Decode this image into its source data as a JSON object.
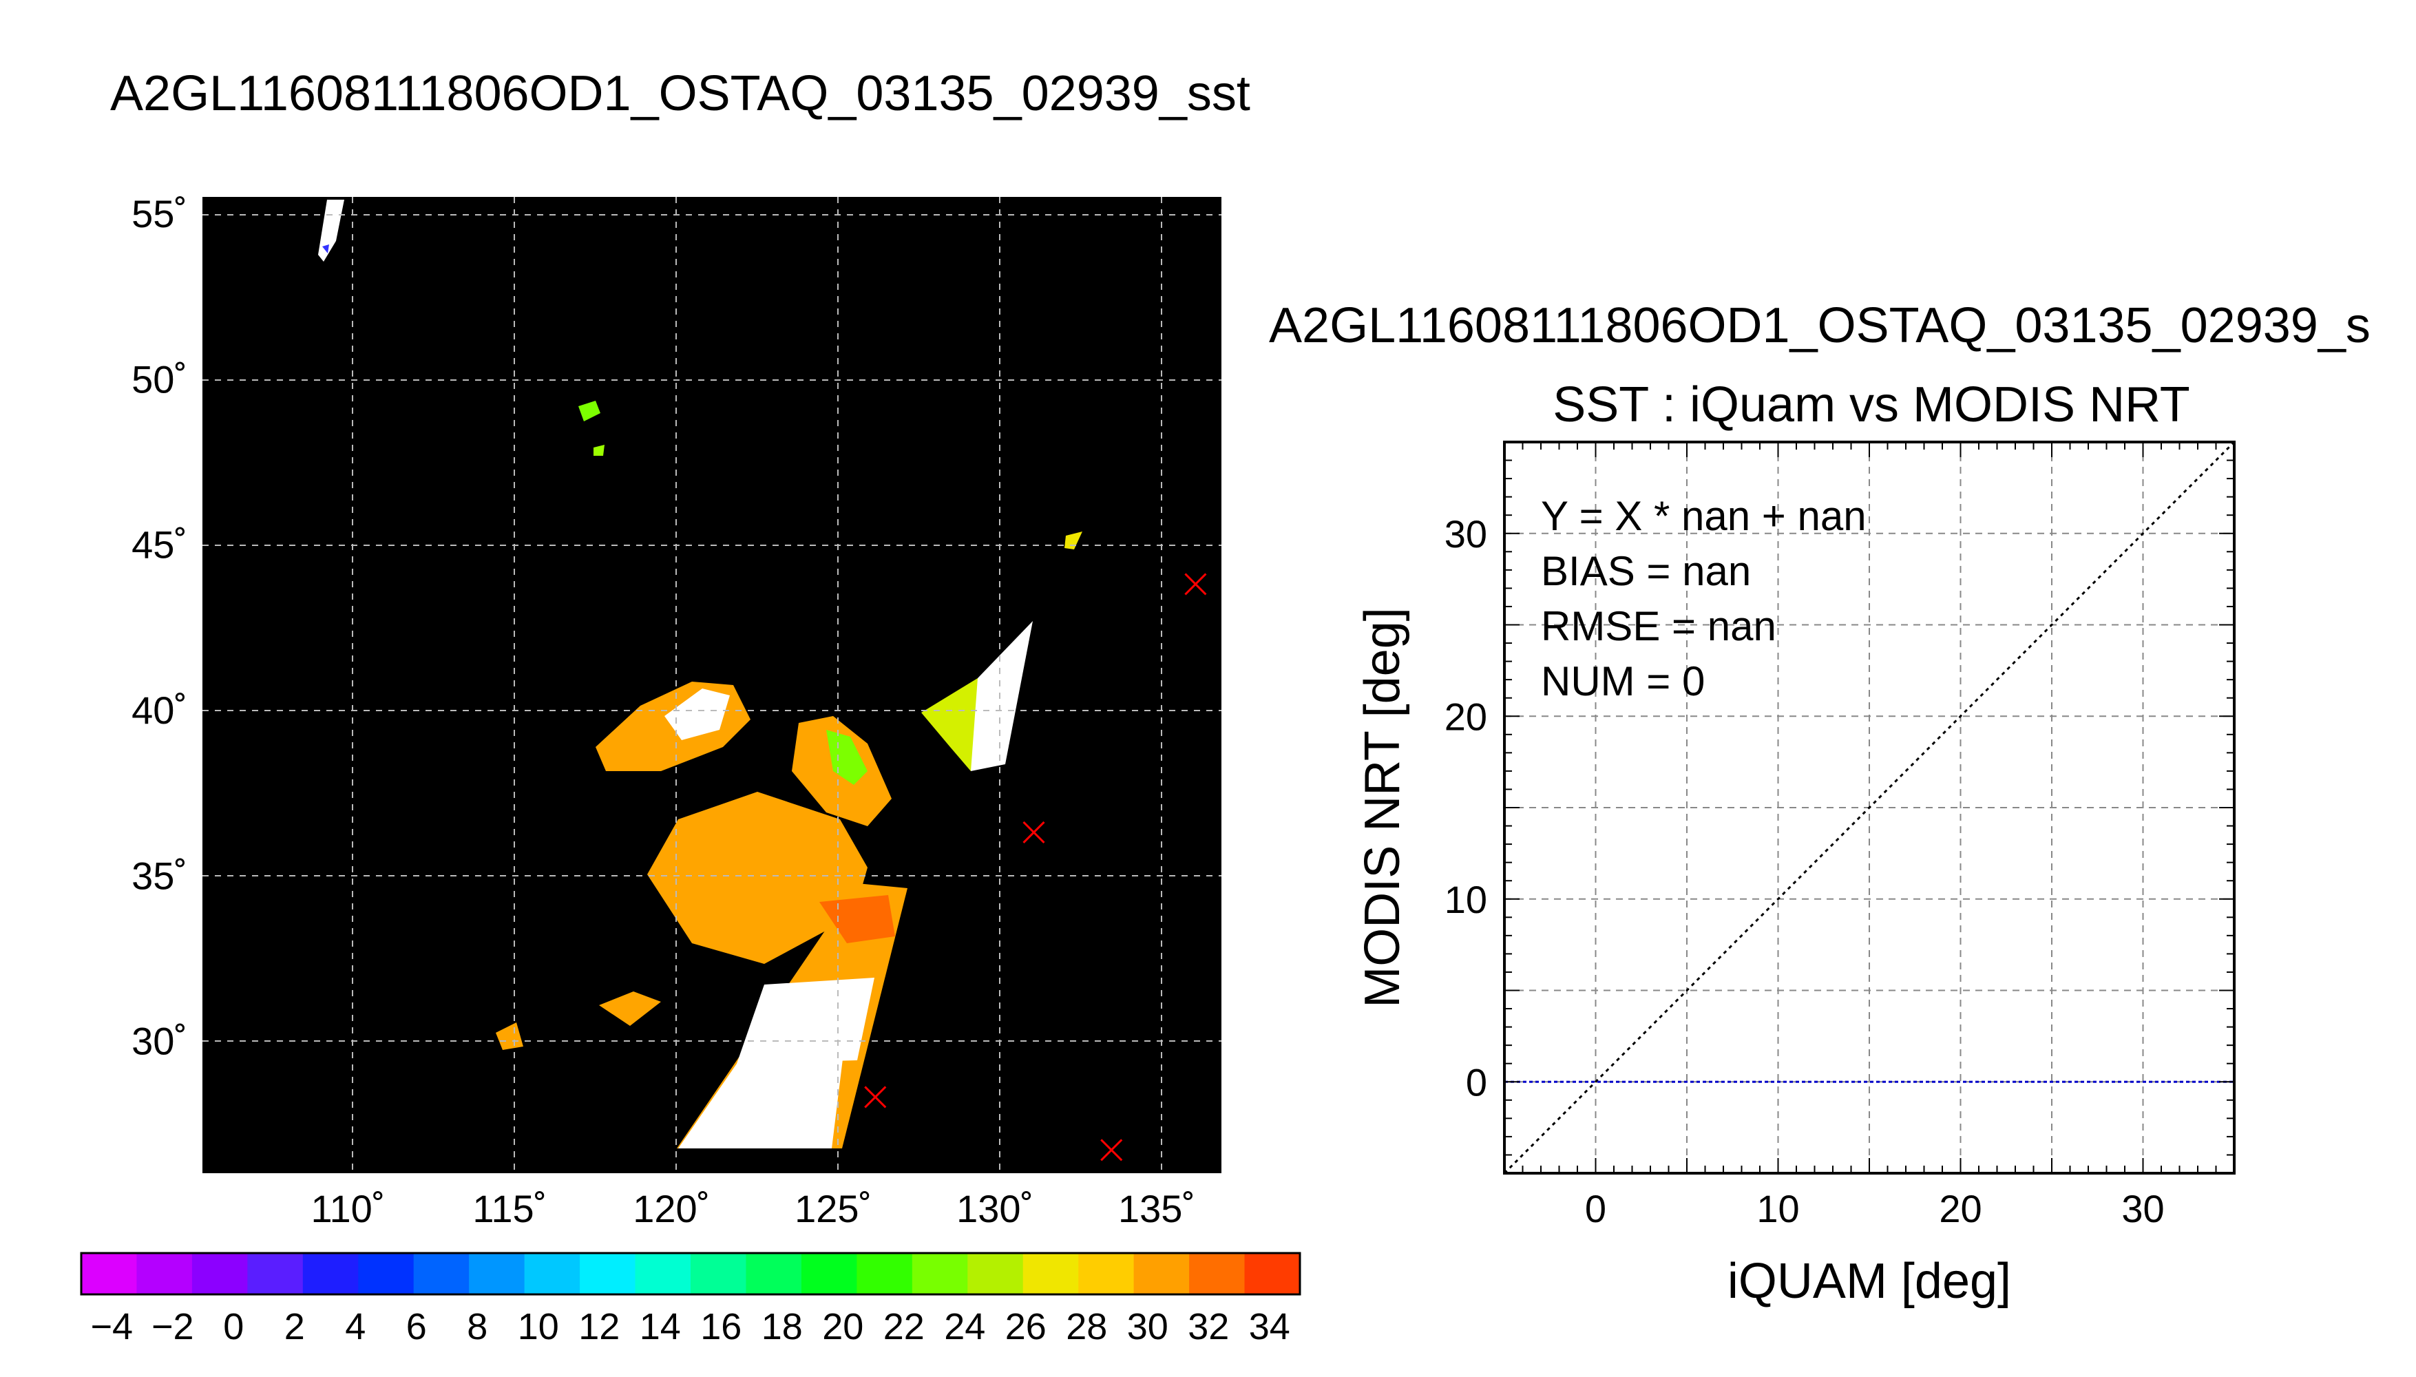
{
  "figure": {
    "title": "A2GL11608111806OD1_OSTAQ_03135_02939_sst",
    "right_title_partial": "A2GL11608111806OD1_OSTAQ_03135_02939_s",
    "right_title_color": "#7f7f7f"
  },
  "chart_data": [
    {
      "type": "heatmap",
      "title": "A2GL11608111806OD1_OSTAQ_03135_02939_sst",
      "xlim": [
        105.5,
        137
      ],
      "ylim": [
        26,
        55.5
      ],
      "x_ticks": [
        110,
        115,
        120,
        125,
        130,
        135
      ],
      "x_tick_labels": [
        "110˚",
        "115˚",
        "120˚",
        "125˚",
        "130˚",
        "135˚"
      ],
      "y_ticks": [
        30,
        35,
        40,
        45,
        50,
        55
      ],
      "y_tick_labels": [
        "30˚",
        "35˚",
        "40˚",
        "45˚",
        "50˚",
        "55˚"
      ],
      "grid": true,
      "background_color": "#000000",
      "no_match_color": "#ffffff",
      "markers": {
        "symbol": "x",
        "color": "#ff0000",
        "points": [
          {
            "lon": 136.2,
            "lat": 43.8
          },
          {
            "lon": 131.2,
            "lat": 36.3
          },
          {
            "lon": 126.3,
            "lat": 28.3
          },
          {
            "lon": 133.6,
            "lat": 26.7
          }
        ]
      },
      "colorbar": {
        "vmin": -5,
        "vmax": 35,
        "tick_values": [
          -4,
          -2,
          0,
          2,
          4,
          6,
          8,
          10,
          12,
          14,
          16,
          18,
          20,
          22,
          24,
          26,
          28,
          30,
          32,
          34
        ],
        "tick_labels": [
          "−4",
          "−2",
          "0",
          "2",
          "4",
          "6",
          "8",
          "10",
          "12",
          "14",
          "16",
          "18",
          "20",
          "22",
          "24",
          "26",
          "28",
          "30",
          "32",
          "34"
        ],
        "colors": [
          "#dc00ff",
          "#b400ff",
          "#8c00ff",
          "#5a1eff",
          "#1e1eff",
          "#0032ff",
          "#0064ff",
          "#0096ff",
          "#00c8ff",
          "#00eeff",
          "#00ffd2",
          "#00ff96",
          "#00ff5a",
          "#00ff1e",
          "#32ff00",
          "#78ff00",
          "#b4f000",
          "#f0e600",
          "#ffcd00",
          "#ffa000",
          "#ff6e00",
          "#ff3c00"
        ]
      }
    },
    {
      "type": "scatter",
      "title": "SST : iQuam vs MODIS NRT",
      "xlabel": "iQUAM [deg]",
      "ylabel": "MODIS NRT [deg]",
      "xlim": [
        -5,
        35
      ],
      "ylim": [
        -5,
        35
      ],
      "x_ticks": [
        0,
        10,
        20,
        30
      ],
      "x_tick_labels": [
        "0",
        "10",
        "20",
        "30"
      ],
      "y_ticks": [
        0,
        10,
        20,
        30
      ],
      "y_tick_labels": [
        "0",
        "10",
        "20",
        "30"
      ],
      "grid": true,
      "points": [],
      "identity_line": {
        "color": "#000000"
      },
      "zero_line": {
        "y": 0,
        "color": "#0000c8"
      },
      "stats": {
        "fit": "Y = X * nan + nan",
        "bias": "BIAS = nan",
        "rmse": "RMSE = nan",
        "num": "NUM = 0"
      }
    }
  ]
}
